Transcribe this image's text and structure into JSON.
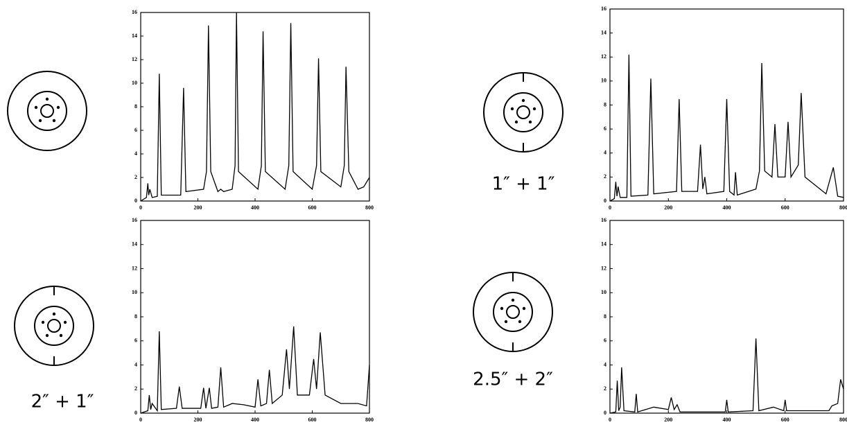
{
  "chart_data": [
    {
      "type": "line",
      "color": "#000000",
      "x": [
        0,
        20,
        25,
        28,
        32,
        40,
        58,
        65,
        72,
        140,
        150,
        158,
        220,
        230,
        237,
        245,
        270,
        280,
        290,
        320,
        330,
        335,
        342,
        410,
        422,
        428,
        436,
        505,
        518,
        525,
        533,
        600,
        615,
        622,
        630,
        700,
        712,
        718,
        728,
        760,
        780,
        800
      ],
      "values": [
        0,
        0.3,
        1.5,
        0.5,
        1.0,
        0.3,
        0.4,
        10.8,
        0.5,
        0.5,
        9.6,
        0.8,
        1.0,
        2.5,
        14.9,
        2.5,
        0.8,
        1.0,
        0.8,
        1.0,
        3,
        16,
        2.5,
        1.0,
        3,
        14.4,
        2.5,
        1.0,
        3,
        15.1,
        2.5,
        1.0,
        3,
        12.1,
        2.5,
        1.2,
        3,
        11.4,
        2.5,
        1.0,
        1.2,
        2.0
      ],
      "xlim": [
        0,
        800
      ],
      "ylim": [
        0,
        16
      ],
      "xticks": [
        0,
        200,
        400,
        600,
        800
      ],
      "yticks": [
        0,
        2,
        4,
        6,
        8,
        10,
        12,
        14,
        16
      ]
    },
    {
      "type": "line",
      "color": "#000000",
      "annotation": "2″ + 1″",
      "x": [
        0,
        25,
        30,
        35,
        40,
        58,
        65,
        72,
        125,
        135,
        145,
        210,
        220,
        228,
        240,
        248,
        270,
        280,
        290,
        320,
        360,
        400,
        410,
        420,
        440,
        450,
        460,
        495,
        510,
        520,
        535,
        548,
        590,
        605,
        615,
        628,
        645,
        700,
        760,
        790,
        800
      ],
      "values": [
        0,
        0.2,
        1.5,
        0.3,
        0.8,
        0.2,
        6.8,
        0.3,
        0.4,
        2.2,
        0.4,
        0.4,
        2.1,
        0.4,
        2.1,
        0.4,
        0.5,
        3.8,
        0.5,
        0.8,
        0.7,
        0.5,
        2.8,
        0.6,
        0.8,
        3.6,
        0.8,
        1.5,
        5.3,
        2.0,
        7.2,
        1.5,
        1.5,
        4.5,
        2.0,
        6.7,
        1.5,
        0.8,
        0.8,
        0.6,
        4.0
      ],
      "xlim": [
        0,
        800
      ],
      "ylim": [
        0,
        16
      ],
      "xticks": [
        0,
        200,
        400,
        600,
        800
      ],
      "yticks": [
        0,
        2,
        4,
        6,
        8,
        10,
        12,
        14,
        16
      ]
    },
    {
      "type": "line",
      "color": "#000000",
      "annotation": "1″ + 1″",
      "x": [
        0,
        15,
        20,
        24,
        28,
        35,
        58,
        65,
        72,
        130,
        140,
        150,
        228,
        237,
        246,
        300,
        310,
        318,
        325,
        332,
        390,
        400,
        410,
        425,
        430,
        436,
        500,
        512,
        520,
        530,
        555,
        565,
        575,
        600,
        610,
        620,
        645,
        655,
        668,
        740,
        765,
        780,
        800
      ],
      "values": [
        0,
        0.2,
        1.6,
        0.4,
        1.2,
        0.3,
        0.3,
        12.2,
        0.4,
        0.5,
        10.2,
        0.6,
        0.8,
        8.5,
        0.8,
        0.8,
        4.7,
        1.0,
        2.0,
        0.6,
        0.8,
        8.5,
        0.8,
        0.5,
        2.4,
        0.5,
        1.0,
        2.5,
        11.5,
        2.5,
        2.0,
        6.4,
        2.0,
        2.0,
        6.6,
        2.0,
        3.0,
        9.0,
        2.0,
        0.6,
        2.8,
        0.4,
        0.3
      ],
      "xlim": [
        0,
        800
      ],
      "ylim": [
        0,
        16
      ],
      "xticks": [
        0,
        200,
        400,
        600,
        800
      ],
      "yticks": [
        0,
        2,
        4,
        6,
        8,
        10,
        12,
        14,
        16
      ]
    },
    {
      "type": "line",
      "color": "#000000",
      "annotation": "2.5″ + 2″",
      "x": [
        0,
        20,
        25,
        30,
        35,
        40,
        48,
        85,
        90,
        95,
        150,
        200,
        210,
        220,
        230,
        240,
        395,
        400,
        405,
        490,
        500,
        510,
        560,
        595,
        600,
        605,
        750,
        760,
        780,
        790,
        800
      ],
      "values": [
        0,
        0.1,
        2.7,
        0.2,
        0.5,
        3.8,
        0.2,
        0.1,
        1.6,
        0.1,
        0.5,
        0.3,
        1.3,
        0.3,
        0.7,
        0.1,
        0.1,
        1.1,
        0.1,
        0.2,
        6.2,
        0.2,
        0.5,
        0.2,
        1.1,
        0.2,
        0.2,
        0.6,
        0.8,
        2.8,
        2.0
      ],
      "xlim": [
        0,
        800
      ],
      "ylim": [
        0,
        16
      ],
      "xticks": [
        0,
        200,
        400,
        600,
        800
      ],
      "yticks": [
        0,
        2,
        4,
        6,
        8,
        10,
        12,
        14,
        16
      ]
    }
  ]
}
